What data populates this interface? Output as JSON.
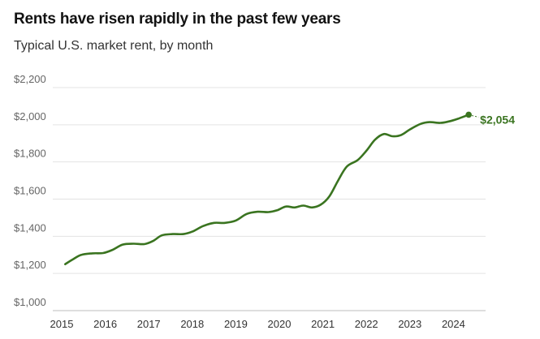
{
  "title": "Rents have risen rapidly in the past few years",
  "subtitle": "Typical U.S. market rent, by month",
  "line_color": "#3a7420",
  "chart_data": {
    "type": "line",
    "title": "Rents have risen rapidly in the past few years",
    "subtitle": "Typical U.S. market rent, by month",
    "xlabel": "",
    "ylabel": "",
    "ylim": [
      1000,
      2200
    ],
    "xlim": [
      2015,
      2024.7
    ],
    "grid": true,
    "y_ticks": [
      {
        "value": 2200,
        "label": "$2,200"
      },
      {
        "value": 2000,
        "label": "$2,000"
      },
      {
        "value": 1800,
        "label": "$1,800"
      },
      {
        "value": 1600,
        "label": "$1,600"
      },
      {
        "value": 1400,
        "label": "$1,400"
      },
      {
        "value": 1200,
        "label": "$1,200"
      },
      {
        "value": 1000,
        "label": "$1,000"
      }
    ],
    "x_ticks": [
      {
        "value": 2015,
        "label": "2015"
      },
      {
        "value": 2016,
        "label": "2016"
      },
      {
        "value": 2017,
        "label": "2017"
      },
      {
        "value": 2018,
        "label": "2018"
      },
      {
        "value": 2019,
        "label": "2019"
      },
      {
        "value": 2020,
        "label": "2020"
      },
      {
        "value": 2021,
        "label": "2021"
      },
      {
        "value": 2022,
        "label": "2022"
      },
      {
        "value": 2023,
        "label": "2023"
      },
      {
        "value": 2024,
        "label": "2024"
      }
    ],
    "series": [
      {
        "points": [
          [
            2015.08,
            1250
          ],
          [
            2015.25,
            1275
          ],
          [
            2015.45,
            1300
          ],
          [
            2015.7,
            1308
          ],
          [
            2015.95,
            1310
          ],
          [
            2016.15,
            1325
          ],
          [
            2016.4,
            1355
          ],
          [
            2016.65,
            1360
          ],
          [
            2016.9,
            1358
          ],
          [
            2017.1,
            1375
          ],
          [
            2017.3,
            1405
          ],
          [
            2017.55,
            1412
          ],
          [
            2017.8,
            1412
          ],
          [
            2018.0,
            1425
          ],
          [
            2018.25,
            1455
          ],
          [
            2018.5,
            1472
          ],
          [
            2018.75,
            1472
          ],
          [
            2019.0,
            1485
          ],
          [
            2019.25,
            1520
          ],
          [
            2019.5,
            1532
          ],
          [
            2019.75,
            1530
          ],
          [
            2019.95,
            1540
          ],
          [
            2020.15,
            1560
          ],
          [
            2020.35,
            1555
          ],
          [
            2020.55,
            1565
          ],
          [
            2020.75,
            1555
          ],
          [
            2020.95,
            1570
          ],
          [
            2021.15,
            1615
          ],
          [
            2021.35,
            1700
          ],
          [
            2021.55,
            1775
          ],
          [
            2021.8,
            1810
          ],
          [
            2022.0,
            1860
          ],
          [
            2022.2,
            1920
          ],
          [
            2022.4,
            1950
          ],
          [
            2022.6,
            1938
          ],
          [
            2022.8,
            1945
          ],
          [
            2023.0,
            1975
          ],
          [
            2023.25,
            2005
          ],
          [
            2023.45,
            2014
          ],
          [
            2023.7,
            2010
          ],
          [
            2023.9,
            2018
          ],
          [
            2024.1,
            2032
          ],
          [
            2024.35,
            2054
          ]
        ],
        "end_label": "$2,054",
        "end_value": 2054
      }
    ]
  }
}
